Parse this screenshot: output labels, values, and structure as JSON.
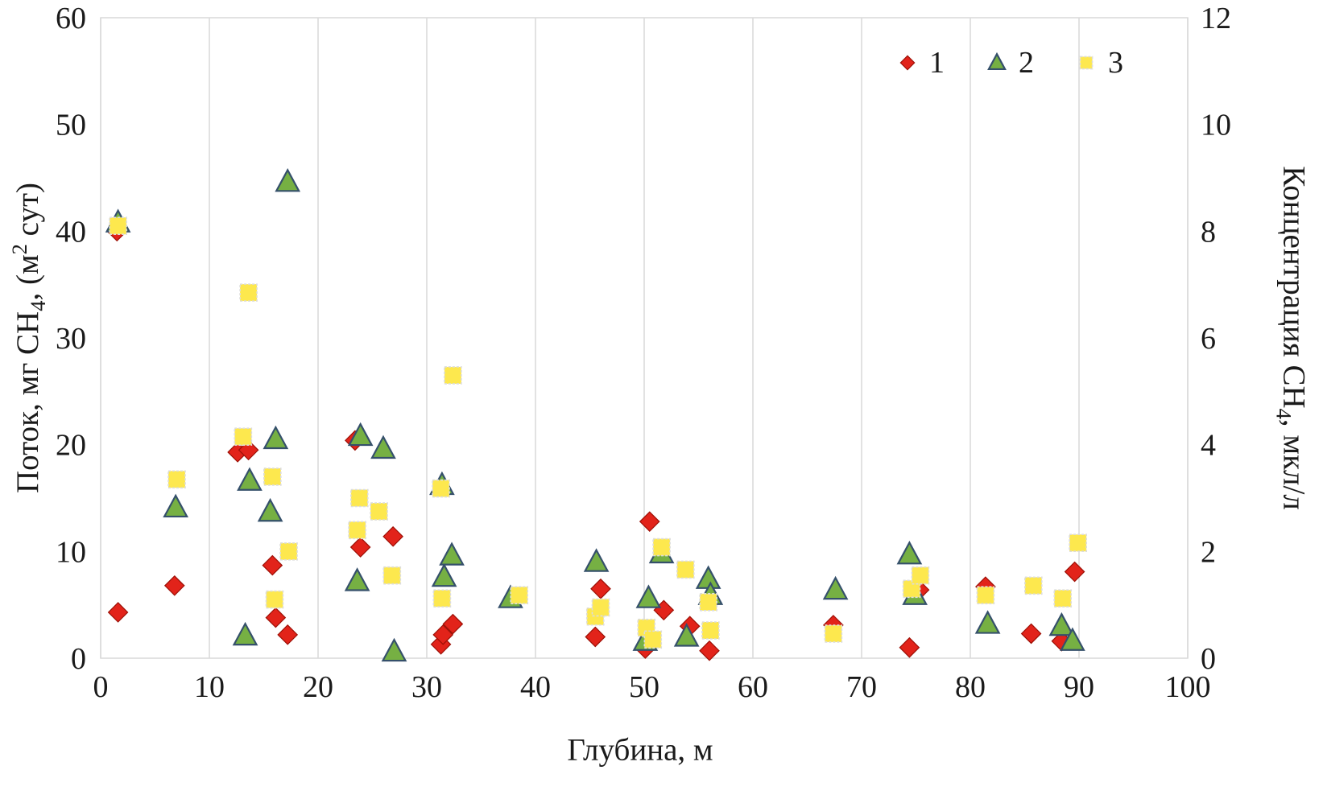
{
  "chart_data": {
    "type": "scatter",
    "title": "",
    "xlabel": "Глубина, м",
    "ylabel_left": "Поток, мг CH4, (м2 сут)",
    "ylabel_right": "Концентрация CH4, мкл/л",
    "grid": "vertical-only",
    "legend_position": "top-right-inside",
    "x_axis": {
      "min": 0,
      "max": 100,
      "ticks": [
        0,
        10,
        20,
        30,
        40,
        50,
        60,
        70,
        80,
        90,
        100
      ]
    },
    "y_left": {
      "min": 0,
      "max": 60,
      "ticks": [
        0,
        10,
        20,
        30,
        40,
        50,
        60
      ]
    },
    "y_right": {
      "min": 0,
      "max": 12,
      "ticks": [
        0,
        2,
        4,
        6,
        8,
        10,
        12
      ]
    },
    "style": {
      "grid_color": "#d9d9d9",
      "text_color": "#1a1a1a"
    },
    "series": [
      {
        "name": "1",
        "marker": "diamond",
        "axis": "left",
        "color": "#e2231a",
        "stroke": "#9c1006",
        "points": [
          [
            1.5,
            40.0
          ],
          [
            1.6,
            4.3
          ],
          [
            6.8,
            6.8
          ],
          [
            12.6,
            19.3
          ],
          [
            13.6,
            19.5
          ],
          [
            15.8,
            8.7
          ],
          [
            16.1,
            3.8
          ],
          [
            17.2,
            2.2
          ],
          [
            23.4,
            20.4
          ],
          [
            23.9,
            10.4
          ],
          [
            26.9,
            11.4
          ],
          [
            31.3,
            1.3
          ],
          [
            31.5,
            2.2
          ],
          [
            32.4,
            3.2
          ],
          [
            45.5,
            2.0
          ],
          [
            46.0,
            6.5
          ],
          [
            50.1,
            0.9
          ],
          [
            50.5,
            12.8
          ],
          [
            51.8,
            4.5
          ],
          [
            54.2,
            3.0
          ],
          [
            56.0,
            0.7
          ],
          [
            67.4,
            3.1
          ],
          [
            74.4,
            1.0
          ],
          [
            75.3,
            6.4
          ],
          [
            81.4,
            6.7
          ],
          [
            85.6,
            2.3
          ],
          [
            88.4,
            1.6
          ],
          [
            89.6,
            8.1
          ]
        ]
      },
      {
        "name": "2",
        "marker": "triangle",
        "axis": "left",
        "color": "#76b043",
        "stroke": "#35506b",
        "points": [
          [
            1.6,
            40.8
          ],
          [
            6.9,
            14.1
          ],
          [
            13.3,
            2.1
          ],
          [
            13.7,
            16.6
          ],
          [
            15.6,
            13.7
          ],
          [
            16.1,
            20.5
          ],
          [
            17.2,
            44.6
          ],
          [
            23.6,
            7.2
          ],
          [
            23.9,
            20.8
          ],
          [
            26.0,
            19.6
          ],
          [
            27.0,
            0.6
          ],
          [
            31.4,
            16.2
          ],
          [
            31.6,
            7.6
          ],
          [
            32.3,
            9.6
          ],
          [
            37.7,
            5.6
          ],
          [
            45.6,
            9.0
          ],
          [
            50.1,
            1.6
          ],
          [
            50.4,
            5.6
          ],
          [
            51.6,
            9.8
          ],
          [
            53.9,
            2.0
          ],
          [
            55.9,
            7.4
          ],
          [
            56.1,
            5.9
          ],
          [
            67.6,
            6.4
          ],
          [
            74.4,
            9.7
          ],
          [
            74.9,
            5.9
          ],
          [
            81.6,
            3.2
          ],
          [
            88.4,
            3.0
          ],
          [
            89.4,
            1.6
          ]
        ]
      },
      {
        "name": "3",
        "marker": "square",
        "axis": "right",
        "color": "#fde84e",
        "stroke": "#dcdcdc",
        "points": [
          [
            1.6,
            8.1
          ],
          [
            7.0,
            3.35
          ],
          [
            13.1,
            4.15
          ],
          [
            13.6,
            6.85
          ],
          [
            15.8,
            3.4
          ],
          [
            16.0,
            1.1
          ],
          [
            17.3,
            2.0
          ],
          [
            23.6,
            2.4
          ],
          [
            23.8,
            3.0
          ],
          [
            25.6,
            2.75
          ],
          [
            26.8,
            1.55
          ],
          [
            31.3,
            3.18
          ],
          [
            31.4,
            1.12
          ],
          [
            32.4,
            5.3
          ],
          [
            38.5,
            1.18
          ],
          [
            45.5,
            0.78
          ],
          [
            46.0,
            0.95
          ],
          [
            50.2,
            0.57
          ],
          [
            50.8,
            0.35
          ],
          [
            51.6,
            2.08
          ],
          [
            53.8,
            1.66
          ],
          [
            55.9,
            1.05
          ],
          [
            56.1,
            0.52
          ],
          [
            67.4,
            0.46
          ],
          [
            74.6,
            1.3
          ],
          [
            75.4,
            1.55
          ],
          [
            81.4,
            1.18
          ],
          [
            85.8,
            1.36
          ],
          [
            88.5,
            1.12
          ],
          [
            89.9,
            2.16
          ]
        ]
      }
    ]
  },
  "axes": {
    "x_title": {
      "text": "Глубина, м"
    },
    "left_title": {
      "p1": "Поток, мг CH",
      "sub1": "4",
      "p2": ", (м",
      "sup1": "2",
      "p3": " сут)"
    },
    "right_title": {
      "p1": "Концентрация CH",
      "sub1": "4",
      "p2": ", мкл/л"
    }
  },
  "legend": {
    "items": [
      {
        "label": "1",
        "marker": "diamond"
      },
      {
        "label": "2",
        "marker": "triangle"
      },
      {
        "label": "3",
        "marker": "square"
      }
    ]
  }
}
